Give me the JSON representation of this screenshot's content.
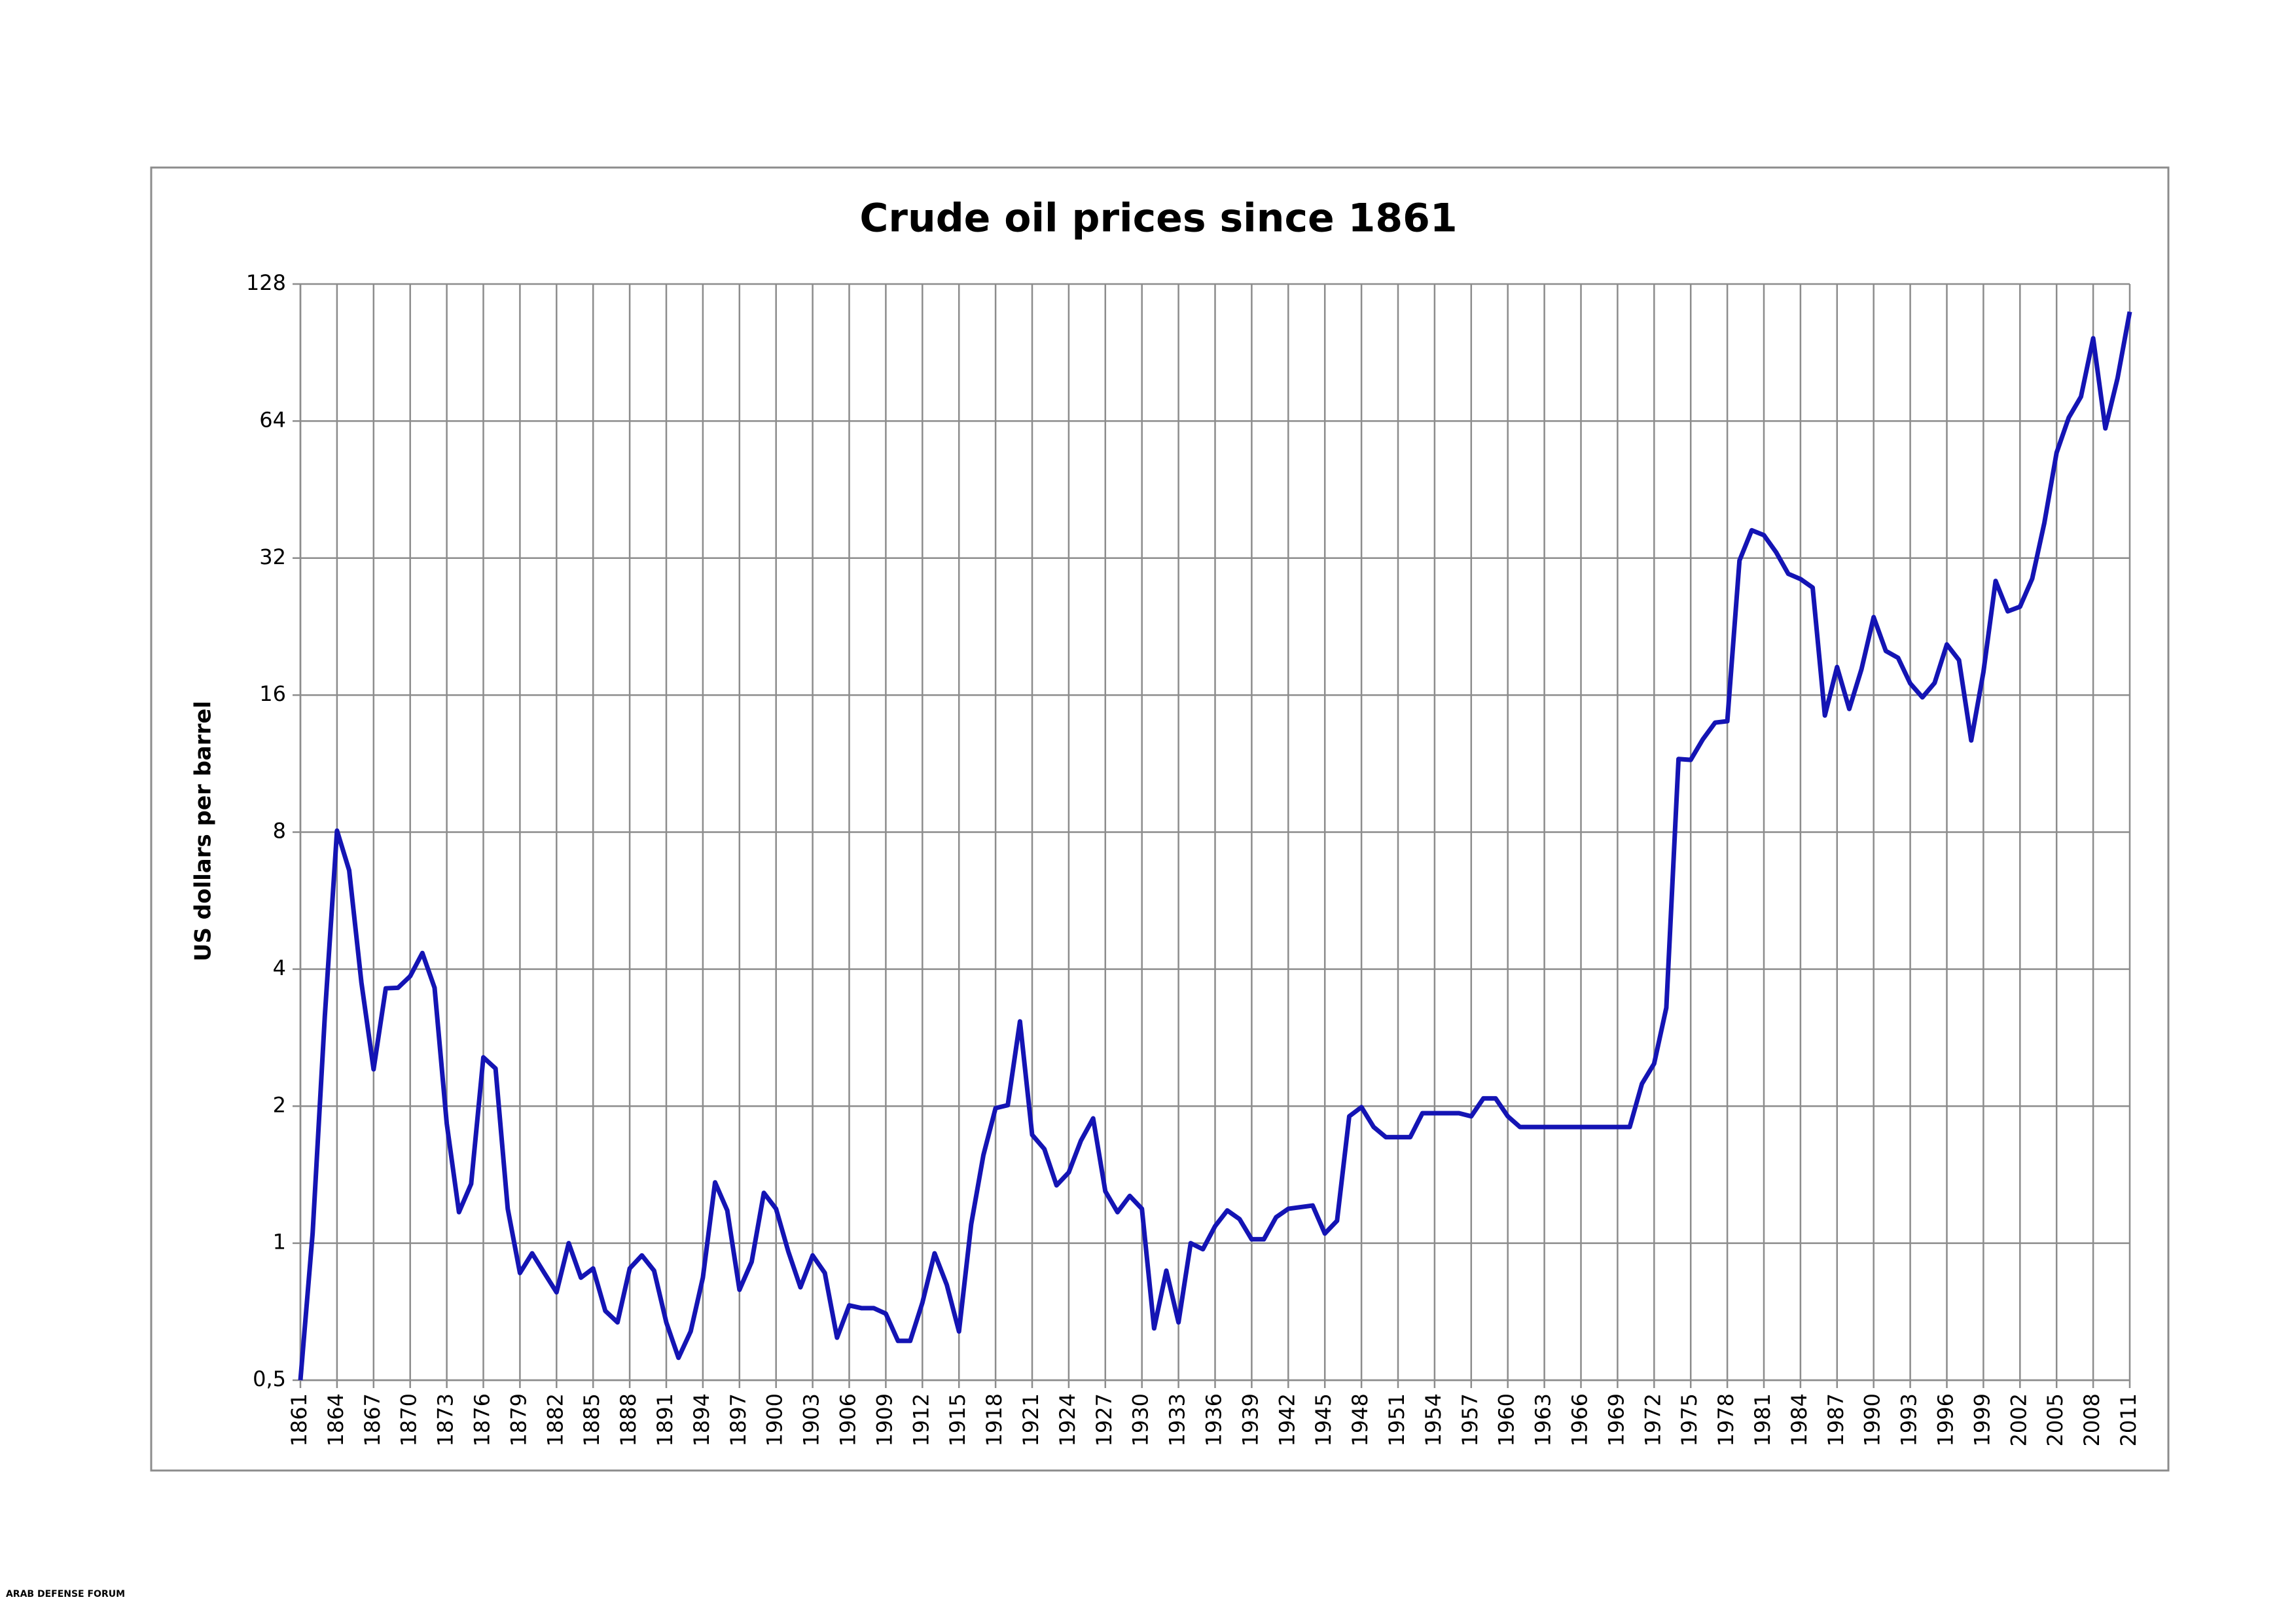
{
  "chart_data": {
    "type": "line",
    "title": "Crude oil prices since 1861",
    "y_label": "US dollars per barrel",
    "watermark": "ARAB DEFENSE FORUM",
    "x": [
      1861,
      1862,
      1863,
      1864,
      1865,
      1866,
      1867,
      1868,
      1869,
      1870,
      1871,
      1872,
      1873,
      1874,
      1875,
      1876,
      1877,
      1878,
      1879,
      1880,
      1881,
      1882,
      1883,
      1884,
      1885,
      1886,
      1887,
      1888,
      1889,
      1890,
      1891,
      1892,
      1893,
      1894,
      1895,
      1896,
      1897,
      1898,
      1899,
      1900,
      1901,
      1902,
      1903,
      1904,
      1905,
      1906,
      1907,
      1908,
      1909,
      1910,
      1911,
      1912,
      1913,
      1914,
      1915,
      1916,
      1917,
      1918,
      1919,
      1920,
      1921,
      1922,
      1923,
      1924,
      1925,
      1926,
      1927,
      1928,
      1929,
      1930,
      1931,
      1932,
      1933,
      1934,
      1935,
      1936,
      1937,
      1938,
      1939,
      1940,
      1941,
      1942,
      1943,
      1944,
      1945,
      1946,
      1947,
      1948,
      1949,
      1950,
      1951,
      1952,
      1953,
      1954,
      1955,
      1956,
      1957,
      1958,
      1959,
      1960,
      1961,
      1962,
      1963,
      1964,
      1965,
      1966,
      1967,
      1968,
      1969,
      1970,
      1971,
      1972,
      1973,
      1974,
      1975,
      1976,
      1977,
      1978,
      1979,
      1980,
      1981,
      1982,
      1983,
      1984,
      1985,
      1986,
      1987,
      1988,
      1989,
      1990,
      1991,
      1992,
      1993,
      1994,
      1995,
      1996,
      1997,
      1998,
      1999,
      2000,
      2001,
      2002,
      2003,
      2004,
      2005,
      2006,
      2007,
      2008,
      2009,
      2010,
      2011
    ],
    "series": [
      {
        "name": "Crude oil price",
        "color": "#1414b4",
        "values": [
          0.5,
          1.05,
          3.15,
          8.06,
          6.59,
          3.74,
          2.41,
          3.63,
          3.64,
          3.86,
          4.34,
          3.64,
          1.83,
          1.17,
          1.35,
          2.56,
          2.42,
          1.19,
          0.86,
          0.95,
          0.86,
          0.78,
          1.0,
          0.84,
          0.88,
          0.71,
          0.67,
          0.88,
          0.94,
          0.87,
          0.67,
          0.56,
          0.64,
          0.84,
          1.36,
          1.18,
          0.79,
          0.91,
          1.29,
          1.19,
          0.96,
          0.8,
          0.94,
          0.86,
          0.62,
          0.73,
          0.72,
          0.72,
          0.7,
          0.61,
          0.61,
          0.74,
          0.95,
          0.81,
          0.64,
          1.1,
          1.56,
          1.98,
          2.01,
          3.07,
          1.73,
          1.61,
          1.34,
          1.43,
          1.68,
          1.88,
          1.3,
          1.17,
          1.27,
          1.19,
          0.65,
          0.87,
          0.67,
          1.0,
          0.97,
          1.09,
          1.18,
          1.13,
          1.02,
          1.02,
          1.14,
          1.19,
          1.2,
          1.21,
          1.05,
          1.12,
          1.9,
          1.99,
          1.8,
          1.71,
          1.71,
          1.71,
          1.93,
          1.93,
          1.93,
          1.93,
          1.9,
          2.08,
          2.08,
          1.9,
          1.8,
          1.8,
          1.8,
          1.8,
          1.8,
          1.8,
          1.8,
          1.8,
          1.8,
          1.8,
          2.24,
          2.48,
          3.29,
          11.58,
          11.53,
          12.8,
          13.92,
          14.02,
          31.61,
          36.83,
          35.93,
          32.97,
          29.55,
          28.78,
          27.56,
          14.43,
          18.44,
          14.92,
          18.23,
          23.73,
          20.0,
          19.32,
          16.97,
          15.82,
          17.02,
          20.67,
          19.09,
          12.72,
          17.97,
          28.5,
          24.44,
          25.02,
          28.83,
          38.27,
          54.52,
          65.14,
          72.39,
          97.26,
          61.67,
          79.5,
          111.26
        ]
      }
    ],
    "xlim": [
      1861,
      2011
    ],
    "xticks": [
      1861,
      1864,
      1867,
      1870,
      1873,
      1876,
      1879,
      1882,
      1885,
      1888,
      1891,
      1894,
      1897,
      1900,
      1903,
      1906,
      1909,
      1912,
      1915,
      1918,
      1921,
      1924,
      1927,
      1930,
      1933,
      1936,
      1939,
      1942,
      1945,
      1948,
      1951,
      1954,
      1957,
      1960,
      1963,
      1966,
      1969,
      1972,
      1975,
      1978,
      1981,
      1984,
      1987,
      1990,
      1993,
      1996,
      1999,
      2002,
      2005,
      2008,
      2011
    ],
    "ylim": [
      0.5,
      128
    ],
    "log_scale_y": true,
    "yticks": [
      {
        "value": 0.5,
        "label": "0,5"
      },
      1,
      2,
      4,
      8,
      16,
      32,
      64,
      128
    ],
    "grid": true
  }
}
